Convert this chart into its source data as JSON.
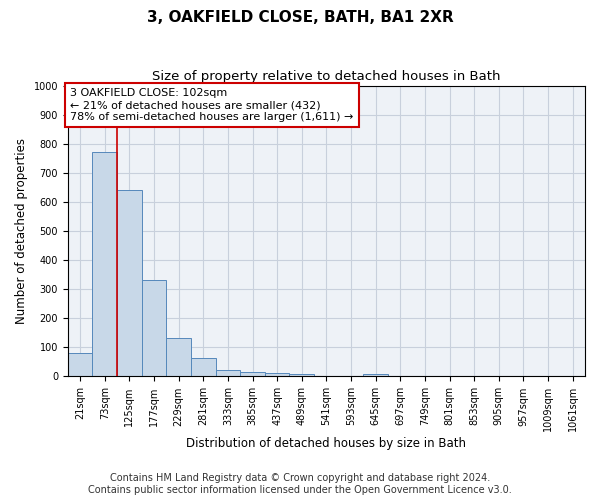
{
  "title": "3, OAKFIELD CLOSE, BATH, BA1 2XR",
  "subtitle": "Size of property relative to detached houses in Bath",
  "xlabel": "Distribution of detached houses by size in Bath",
  "ylabel": "Number of detached properties",
  "footer_line1": "Contains HM Land Registry data © Crown copyright and database right 2024.",
  "footer_line2": "Contains public sector information licensed under the Open Government Licence v3.0.",
  "bar_labels": [
    "21sqm",
    "73sqm",
    "125sqm",
    "177sqm",
    "229sqm",
    "281sqm",
    "333sqm",
    "385sqm",
    "437sqm",
    "489sqm",
    "541sqm",
    "593sqm",
    "645sqm",
    "697sqm",
    "749sqm",
    "801sqm",
    "853sqm",
    "905sqm",
    "957sqm",
    "1009sqm",
    "1061sqm"
  ],
  "bar_values": [
    82,
    770,
    640,
    330,
    133,
    62,
    22,
    17,
    12,
    8,
    0,
    0,
    10,
    0,
    0,
    0,
    0,
    0,
    0,
    0,
    0
  ],
  "bar_color": "#c8d8e8",
  "bar_edge_color": "#5588bb",
  "property_line_x": 1.5,
  "annotation_text": "3 OAKFIELD CLOSE: 102sqm\n← 21% of detached houses are smaller (432)\n78% of semi-detached houses are larger (1,611) →",
  "annotation_box_color": "#ffffff",
  "annotation_box_edge_color": "#cc0000",
  "vline_color": "#cc0000",
  "ylim": [
    0,
    1000
  ],
  "yticks": [
    0,
    100,
    200,
    300,
    400,
    500,
    600,
    700,
    800,
    900,
    1000
  ],
  "grid_color": "#c8d0dc",
  "background_color": "#eef2f7",
  "title_fontsize": 11,
  "subtitle_fontsize": 9.5,
  "axis_label_fontsize": 8.5,
  "tick_fontsize": 7,
  "annotation_fontsize": 8,
  "footer_fontsize": 7
}
